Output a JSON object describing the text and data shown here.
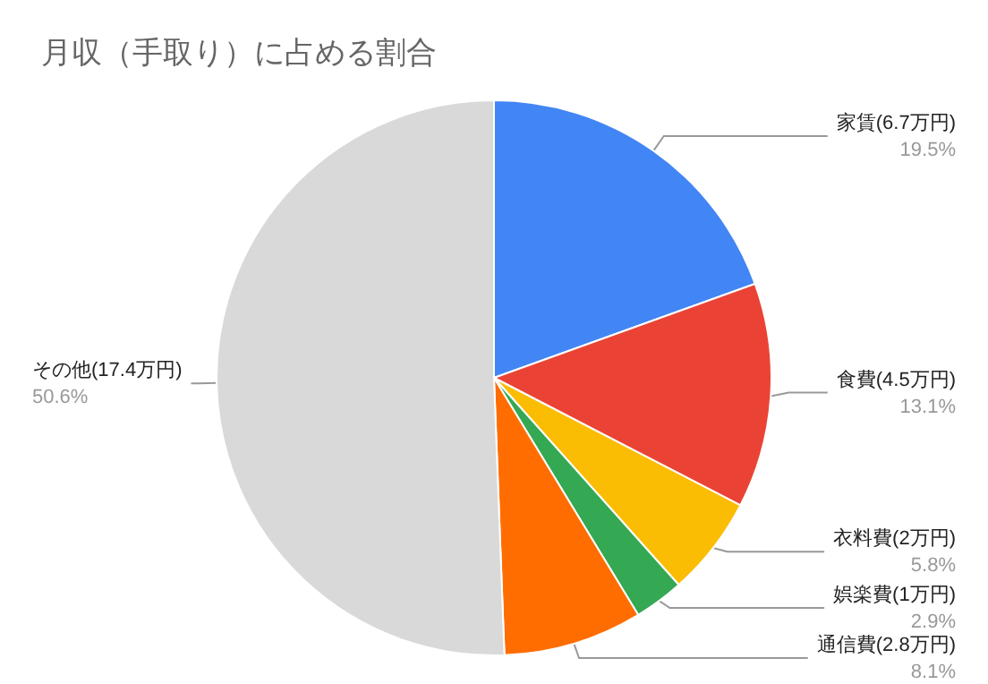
{
  "chart_data": {
    "type": "pie",
    "title": "月収（手取り）に占める割合",
    "categories": [
      "家賃(6.7万円)",
      "食費(4.5万円)",
      "衣料費(2万円)",
      "娯楽費(1万円)",
      "通信費(2.8万円)",
      "その他(17.4万円)"
    ],
    "values": [
      19.5,
      13.1,
      5.8,
      2.9,
      8.1,
      50.6
    ],
    "value_labels": [
      "19.5%",
      "13.1%",
      "5.8%",
      "2.9%",
      "8.1%",
      "50.6%"
    ],
    "colors": [
      "#4285f4",
      "#ea4335",
      "#fbbc04",
      "#34a853",
      "#ff6d01",
      "#d9d9d9"
    ],
    "legend": false
  }
}
